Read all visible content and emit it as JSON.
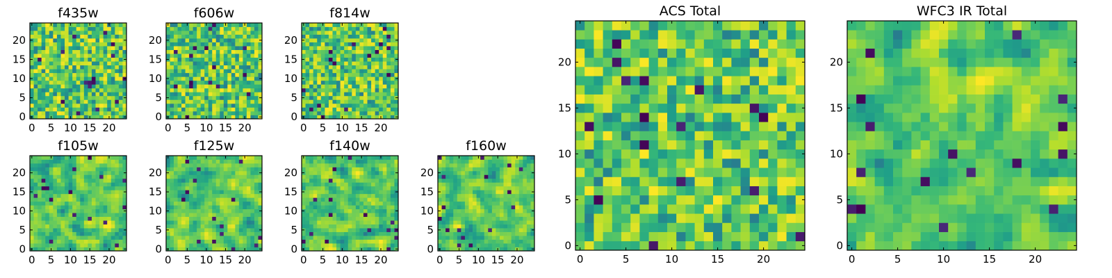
{
  "chart_data": {
    "type": "heatmap",
    "colormap": "viridis",
    "grid": false,
    "panels": [
      {
        "id": "f435w",
        "title": "f435w",
        "xticks": [
          "0",
          "5",
          "10",
          "15",
          "20"
        ],
        "yticks": [
          "0",
          "5",
          "10",
          "15",
          "20"
        ],
        "xlim": [
          0,
          24
        ],
        "ylim": [
          0,
          24
        ],
        "pixels": 25,
        "texture": "noisy"
      },
      {
        "id": "f606w",
        "title": "f606w",
        "xticks": [
          "0",
          "5",
          "10",
          "15",
          "20"
        ],
        "yticks": [
          "0",
          "5",
          "10",
          "15",
          "20"
        ],
        "xlim": [
          0,
          24
        ],
        "ylim": [
          0,
          24
        ],
        "pixels": 25,
        "texture": "noisy"
      },
      {
        "id": "f814w",
        "title": "f814w",
        "xticks": [
          "0",
          "5",
          "10",
          "15",
          "20"
        ],
        "yticks": [
          "0",
          "5",
          "10",
          "15",
          "20"
        ],
        "xlim": [
          0,
          24
        ],
        "ylim": [
          0,
          24
        ],
        "pixels": 25,
        "texture": "noisy"
      },
      {
        "id": "f105w",
        "title": "f105w",
        "xticks": [
          "0",
          "5",
          "10",
          "15",
          "20"
        ],
        "yticks": [
          "0",
          "5",
          "10",
          "15",
          "20"
        ],
        "xlim": [
          0,
          24
        ],
        "ylim": [
          0,
          24
        ],
        "pixels": 25,
        "texture": "smooth"
      },
      {
        "id": "f125w",
        "title": "f125w",
        "xticks": [
          "0",
          "5",
          "10",
          "15",
          "20"
        ],
        "yticks": [
          "0",
          "5",
          "10",
          "15",
          "20"
        ],
        "xlim": [
          0,
          24
        ],
        "ylim": [
          0,
          24
        ],
        "pixels": 25,
        "texture": "smooth"
      },
      {
        "id": "f140w",
        "title": "f140w",
        "xticks": [
          "0",
          "5",
          "10",
          "15",
          "20"
        ],
        "yticks": [
          "0",
          "5",
          "10",
          "15",
          "20"
        ],
        "xlim": [
          0,
          24
        ],
        "ylim": [
          0,
          24
        ],
        "pixels": 25,
        "texture": "smooth"
      },
      {
        "id": "f160w",
        "title": "f160w",
        "xticks": [
          "0",
          "5",
          "10",
          "15",
          "20"
        ],
        "yticks": [
          "0",
          "5",
          "10",
          "15",
          "20"
        ],
        "xlim": [
          0,
          24
        ],
        "ylim": [
          0,
          24
        ],
        "pixels": 25,
        "texture": "smooth"
      },
      {
        "id": "acs-total",
        "title": "ACS Total",
        "xticks": [
          "0",
          "5",
          "10",
          "15",
          "20"
        ],
        "yticks": [
          "0",
          "5",
          "10",
          "15",
          "20"
        ],
        "xlim": [
          0,
          24
        ],
        "ylim": [
          0,
          24
        ],
        "pixels": 25,
        "texture": "noisy"
      },
      {
        "id": "wfc3-ir-total",
        "title": "WFC3 IR Total",
        "xticks": [
          "0",
          "5",
          "10",
          "15",
          "20"
        ],
        "yticks": [
          "0",
          "5",
          "10",
          "15",
          "20"
        ],
        "xlim": [
          0,
          24
        ],
        "ylim": [
          0,
          24
        ],
        "pixels": 25,
        "texture": "smooth"
      }
    ]
  }
}
